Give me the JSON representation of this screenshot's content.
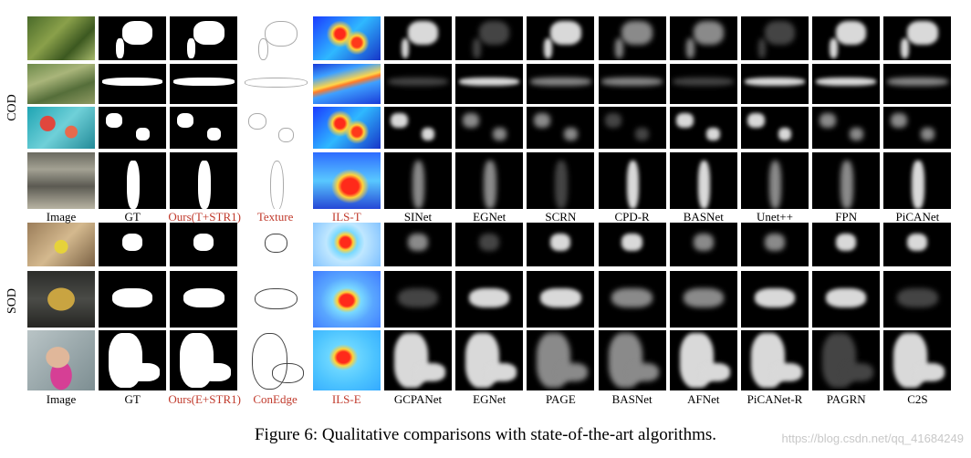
{
  "section_labels": {
    "cod": "COD",
    "sod": "SOD"
  },
  "cod_captions": [
    "Image",
    "GT",
    "Ours(T+STR1)",
    "Texture",
    "ILS-T",
    "SINet",
    "EGNet",
    "SCRN",
    "CPD-R",
    "BASNet",
    "Unet++",
    "FPN",
    "PiCANet"
  ],
  "sod_captions": [
    "Image",
    "GT",
    "Ours(E+STR1)",
    "ConEdge",
    "ILS-E",
    "GCPANet",
    "EGNet",
    "PAGE",
    "BASNet",
    "AFNet",
    "PiCANet-R",
    "PAGRN",
    "C2S"
  ],
  "red_caption_columns": [
    2,
    3,
    4
  ],
  "colors": {
    "red_caption": "#c0392b",
    "watermark": "#c8c8c8",
    "mask_background": "#000000"
  },
  "figure_caption": "Figure 6: Qualitative comparisons with state-of-the-art algorithms.",
  "watermark": "https://blog.csdn.net/qq_41684249"
}
